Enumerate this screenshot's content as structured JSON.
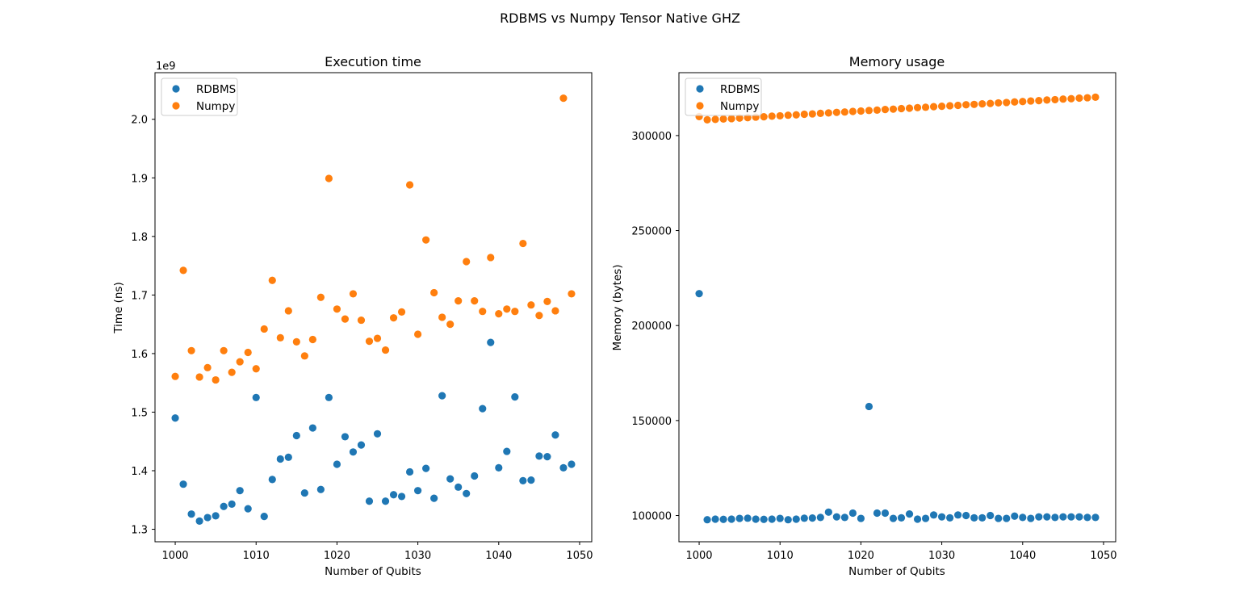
{
  "figure": {
    "suptitle": "RDBMS vs Numpy Tensor Native GHZ"
  },
  "colors": {
    "RDBMS": "#1f77b4",
    "Numpy": "#ff7f0e"
  },
  "chart_data": [
    {
      "type": "scatter",
      "title": "Execution time",
      "xlabel": "Number of Qubits",
      "ylabel": "Time (ns)",
      "offset_text": "1e9",
      "xlim": [
        997.5,
        1051.5
      ],
      "ylim": [
        1.2787,
        2.0796
      ],
      "x_ticks": [
        1000,
        1010,
        1020,
        1030,
        1040,
        1050
      ],
      "y_ticks": [
        1.3,
        1.4,
        1.5,
        1.6,
        1.7,
        1.8,
        1.9,
        2.0
      ],
      "y_tick_labels": [
        "1.3",
        "1.4",
        "1.5",
        "1.6",
        "1.7",
        "1.8",
        "1.9",
        "2.0"
      ],
      "legend": "upper left",
      "series": [
        {
          "name": "RDBMS",
          "x": [
            1000,
            1001,
            1002,
            1003,
            1004,
            1005,
            1006,
            1007,
            1008,
            1009,
            1010,
            1011,
            1012,
            1013,
            1014,
            1015,
            1016,
            1017,
            1018,
            1019,
            1020,
            1021,
            1022,
            1023,
            1024,
            1025,
            1026,
            1027,
            1028,
            1029,
            1030,
            1031,
            1032,
            1033,
            1034,
            1035,
            1036,
            1037,
            1038,
            1039,
            1040,
            1041,
            1042,
            1043,
            1044,
            1045,
            1046,
            1047,
            1048,
            1049
          ],
          "y": [
            1.49,
            1.377,
            1.326,
            1.314,
            1.32,
            1.323,
            1.339,
            1.343,
            1.366,
            1.335,
            1.525,
            1.322,
            1.385,
            1.42,
            1.423,
            1.46,
            1.362,
            1.473,
            1.368,
            1.525,
            1.411,
            1.458,
            1.432,
            1.444,
            1.348,
            1.463,
            1.348,
            1.359,
            1.356,
            1.398,
            1.366,
            1.404,
            1.353,
            1.528,
            1.386,
            1.372,
            1.361,
            1.391,
            1.506,
            1.619,
            1.405,
            1.433,
            1.526,
            1.383,
            1.384,
            1.425,
            1.424,
            1.461,
            1.405,
            1.411
          ]
        },
        {
          "name": "Numpy",
          "x": [
            1000,
            1001,
            1002,
            1003,
            1004,
            1005,
            1006,
            1007,
            1008,
            1009,
            1010,
            1011,
            1012,
            1013,
            1014,
            1015,
            1016,
            1017,
            1018,
            1019,
            1020,
            1021,
            1022,
            1023,
            1024,
            1025,
            1026,
            1027,
            1028,
            1029,
            1030,
            1031,
            1032,
            1033,
            1034,
            1035,
            1036,
            1037,
            1038,
            1039,
            1040,
            1041,
            1042,
            1043,
            1044,
            1045,
            1046,
            1047,
            1048,
            1049
          ],
          "y": [
            1.561,
            1.742,
            1.605,
            1.56,
            1.576,
            1.555,
            1.605,
            1.568,
            1.586,
            1.602,
            1.574,
            1.642,
            1.725,
            1.627,
            1.673,
            1.62,
            1.596,
            1.624,
            1.696,
            1.899,
            1.676,
            1.659,
            1.702,
            1.657,
            1.621,
            1.626,
            1.606,
            1.661,
            1.671,
            1.888,
            1.633,
            1.794,
            1.704,
            1.662,
            1.65,
            1.69,
            1.757,
            1.69,
            1.672,
            1.764,
            1.668,
            1.676,
            1.672,
            1.788,
            1.683,
            1.665,
            1.689,
            1.673,
            2.036,
            1.702
          ]
        }
      ]
    },
    {
      "type": "scatter",
      "title": "Memory usage",
      "xlabel": "Number of Qubits",
      "ylabel": "Memory (bytes)",
      "xlim": [
        997.5,
        1051.5
      ],
      "ylim": [
        86200,
        333100
      ],
      "x_ticks": [
        1000,
        1010,
        1020,
        1030,
        1040,
        1050
      ],
      "y_ticks": [
        100000,
        150000,
        200000,
        250000,
        300000
      ],
      "y_tick_labels": [
        "100000",
        "150000",
        "200000",
        "250000",
        "300000"
      ],
      "legend": "upper left",
      "series": [
        {
          "name": "RDBMS",
          "x": [
            1000,
            1001,
            1002,
            1003,
            1004,
            1005,
            1006,
            1007,
            1008,
            1009,
            1010,
            1011,
            1012,
            1013,
            1014,
            1015,
            1016,
            1017,
            1018,
            1019,
            1020,
            1021,
            1022,
            1023,
            1024,
            1025,
            1026,
            1027,
            1028,
            1029,
            1030,
            1031,
            1032,
            1033,
            1034,
            1035,
            1036,
            1037,
            1038,
            1039,
            1040,
            1041,
            1042,
            1043,
            1044,
            1045,
            1046,
            1047,
            1048,
            1049
          ],
          "y": [
            216800,
            97800,
            98100,
            98000,
            98100,
            98500,
            98600,
            98100,
            98000,
            98100,
            98500,
            97800,
            98100,
            98600,
            98700,
            99000,
            101800,
            99300,
            99000,
            101300,
            98500,
            157400,
            101300,
            101300,
            98500,
            98800,
            100800,
            98100,
            98500,
            100300,
            99300,
            98800,
            100300,
            100000,
            98800,
            98800,
            100000,
            98500,
            98500,
            99700,
            99000,
            98500,
            99300,
            99300,
            99000,
            99300,
            99300,
            99300,
            99000,
            99000
          ]
        },
        {
          "name": "Numpy",
          "x": [
            1000,
            1001,
            1002,
            1003,
            1004,
            1005,
            1006,
            1007,
            1008,
            1009,
            1010,
            1011,
            1012,
            1013,
            1014,
            1015,
            1016,
            1017,
            1018,
            1019,
            1020,
            1021,
            1022,
            1023,
            1024,
            1025,
            1026,
            1027,
            1028,
            1029,
            1030,
            1031,
            1032,
            1033,
            1034,
            1035,
            1036,
            1037,
            1038,
            1039,
            1040,
            1041,
            1042,
            1043,
            1044,
            1045,
            1046,
            1047,
            1048,
            1049
          ],
          "y": [
            310000,
            308300,
            308500,
            308700,
            308900,
            309200,
            309400,
            309700,
            309900,
            310200,
            310400,
            310700,
            310900,
            311200,
            311400,
            311700,
            311900,
            312200,
            312400,
            312700,
            312900,
            313200,
            313400,
            313700,
            313900,
            314200,
            314400,
            314700,
            314900,
            315200,
            315400,
            315700,
            315900,
            316200,
            316400,
            316700,
            316900,
            317200,
            317400,
            317700,
            317900,
            318200,
            318400,
            318700,
            318900,
            319200,
            319400,
            319700,
            319900,
            320200
          ]
        }
      ]
    }
  ]
}
